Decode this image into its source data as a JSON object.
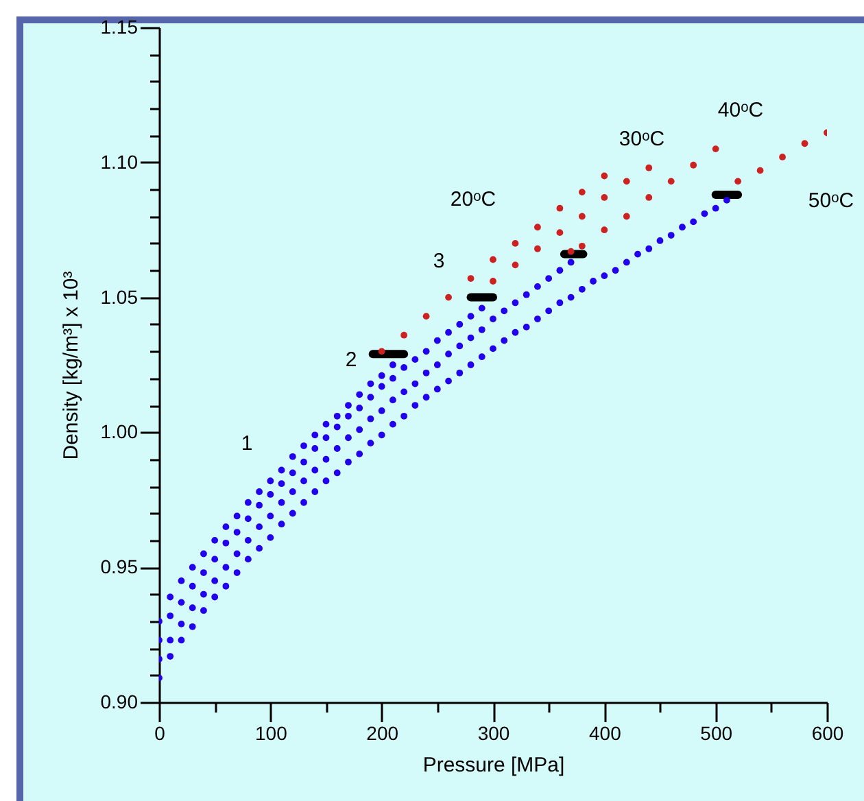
{
  "chart_data": {
    "type": "scatter",
    "xlabel": "Pressure [MPa]",
    "ylabel": "Density [kg/m³] x 10³",
    "xlim": [
      0,
      600
    ],
    "ylim": [
      0.9,
      1.15
    ],
    "xticks": [
      0,
      {
        "value": 50,
        "label": null
      },
      100,
      {
        "value": 150,
        "label": null
      },
      200,
      {
        "value": 250,
        "label": null
      },
      300,
      {
        "value": 350,
        "label": null
      },
      400,
      {
        "value": 450,
        "label": null
      },
      500,
      {
        "value": 550,
        "label": null
      },
      600
    ],
    "yticks": [
      {
        "value": 0.9,
        "label": "0.90"
      },
      {
        "value": 0.91,
        "label": null
      },
      {
        "value": 0.92,
        "label": null
      },
      {
        "value": 0.93,
        "label": null
      },
      {
        "value": 0.94,
        "label": null
      },
      0.95,
      {
        "value": 0.96,
        "label": null
      },
      {
        "value": 0.97,
        "label": null
      },
      {
        "value": 0.98,
        "label": null
      },
      {
        "value": 0.99,
        "label": null
      },
      {
        "value": 1,
        "label": "1.00"
      },
      {
        "value": 1.01,
        "label": null
      },
      {
        "value": 1.02,
        "label": null
      },
      {
        "value": 1.03,
        "label": null
      },
      {
        "value": 1.04,
        "label": null
      },
      1.05,
      {
        "value": 1.06,
        "label": null
      },
      {
        "value": 1.07,
        "label": null
      },
      {
        "value": 1.08,
        "label": null
      },
      {
        "value": 1.09,
        "label": null
      },
      {
        "value": 1.1,
        "label": "1.10"
      },
      {
        "value": 1.11,
        "label": null
      },
      {
        "value": 1.12,
        "label": null
      },
      {
        "value": 1.13,
        "label": null
      },
      {
        "value": 1.14,
        "label": null
      },
      1.15
    ],
    "marker": "circle",
    "series": [
      {
        "color": "#2200ee",
        "x": [
          0,
          10,
          20,
          30,
          40,
          50,
          60,
          70,
          80,
          90,
          100,
          110,
          120,
          130,
          140,
          150,
          160,
          170,
          180,
          190,
          200,
          210
        ],
        "values": [
          0.93,
          0.939,
          0.945,
          0.95,
          0.955,
          0.96,
          0.965,
          0.969,
          0.974,
          0.978,
          0.982,
          0.986,
          0.991,
          0.995,
          0.999,
          1.003,
          1.006,
          1.01,
          1.014,
          1.018,
          1.021,
          1.025
        ]
      },
      {
        "color": "#2200ee",
        "x": [
          0,
          10,
          20,
          30,
          40,
          50,
          60,
          70,
          80,
          90,
          100,
          110,
          120,
          130,
          140,
          150,
          160,
          170,
          180,
          190,
          200,
          210,
          220,
          230,
          240,
          250,
          260,
          270,
          280,
          290
        ],
        "values": [
          0.923,
          0.932,
          0.937,
          0.943,
          0.948,
          0.953,
          0.959,
          0.963,
          0.968,
          0.973,
          0.977,
          0.981,
          0.985,
          0.989,
          0.994,
          0.998,
          1.002,
          1.006,
          1.009,
          1.013,
          1.017,
          1.02,
          1.024,
          1.027,
          1.03,
          1.034,
          1.037,
          1.04,
          1.043,
          1.046
        ]
      },
      {
        "color": "#2200ee",
        "x": [
          0,
          10,
          20,
          30,
          40,
          50,
          60,
          70,
          80,
          90,
          100,
          110,
          120,
          130,
          140,
          150,
          160,
          170,
          180,
          190,
          200,
          210,
          220,
          230,
          240,
          250,
          260,
          270,
          280,
          290,
          300,
          310,
          320,
          330,
          340,
          350,
          360,
          370
        ],
        "values": [
          0.916,
          0.923,
          0.929,
          0.935,
          0.94,
          0.945,
          0.95,
          0.955,
          0.96,
          0.965,
          0.969,
          0.974,
          0.978,
          0.982,
          0.986,
          0.99,
          0.994,
          0.998,
          1.001,
          1.005,
          1.008,
          1.012,
          1.015,
          1.018,
          1.022,
          1.025,
          1.029,
          1.032,
          1.035,
          1.038,
          1.042,
          1.045,
          1.048,
          1.051,
          1.054,
          1.057,
          1.06,
          1.063
        ]
      },
      {
        "color": "#2200ee",
        "x": [
          0,
          10,
          20,
          30,
          40,
          50,
          60,
          70,
          80,
          90,
          100,
          110,
          120,
          130,
          140,
          150,
          160,
          170,
          180,
          190,
          200,
          210,
          220,
          230,
          240,
          250,
          260,
          270,
          280,
          290,
          300,
          310,
          320,
          330,
          340,
          350,
          360,
          370,
          380,
          390,
          400,
          410,
          420,
          430,
          440,
          450,
          460,
          470,
          480,
          490,
          500,
          510
        ],
        "values": [
          0.909,
          0.917,
          0.923,
          0.928,
          0.934,
          0.939,
          0.943,
          0.948,
          0.953,
          0.957,
          0.961,
          0.966,
          0.97,
          0.974,
          0.978,
          0.982,
          0.985,
          0.989,
          0.992,
          0.996,
          0.999,
          1.003,
          1.006,
          1.01,
          1.013,
          1.016,
          1.019,
          1.022,
          1.025,
          1.028,
          1.031,
          1.034,
          1.037,
          1.039,
          1.042,
          1.045,
          1.048,
          1.05,
          1.053,
          1.056,
          1.058,
          1.06,
          1.063,
          1.066,
          1.068,
          1.071,
          1.073,
          1.076,
          1.078,
          1.081,
          1.083,
          1.086
        ]
      },
      {
        "color": "#cc2222",
        "x": [
          200,
          220,
          240,
          260,
          280,
          300,
          320,
          340,
          360,
          380,
          400
        ],
        "values": [
          1.03,
          1.036,
          1.043,
          1.05,
          1.057,
          1.064,
          1.07,
          1.076,
          1.083,
          1.089,
          1.095
        ]
      },
      {
        "color": "#cc2222",
        "x": [
          300,
          320,
          340,
          360,
          380,
          400,
          420,
          440
        ],
        "values": [
          1.056,
          1.062,
          1.068,
          1.074,
          1.08,
          1.087,
          1.093,
          1.098
        ]
      },
      {
        "color": "#cc2222",
        "x": [
          370,
          380,
          400,
          420,
          440,
          460,
          480,
          500
        ],
        "values": [
          1.067,
          1.069,
          1.075,
          1.08,
          1.087,
          1.093,
          1.099,
          1.105
        ]
      },
      {
        "color": "#cc2222",
        "x": [
          520,
          540,
          560,
          580,
          600
        ],
        "values": [
          1.093,
          1.097,
          1.102,
          1.107,
          1.111
        ]
      },
      {
        "type": "line",
        "marker": "none",
        "color": "#000000",
        "x": [
          192,
          220
        ],
        "values": [
          1.029,
          1.029
        ]
      },
      {
        "type": "line",
        "marker": "none",
        "color": "#000000",
        "x": [
          280,
          300
        ],
        "values": [
          1.05,
          1.05
        ]
      },
      {
        "type": "line",
        "marker": "none",
        "color": "#000000",
        "x": [
          364,
          381
        ],
        "values": [
          1.066,
          1.066
        ]
      },
      {
        "type": "line",
        "marker": "none",
        "color": "#000000",
        "x": [
          500,
          520
        ],
        "values": [
          1.088,
          1.088
        ]
      }
    ],
    "annotations": [
      "1",
      "2",
      "3",
      "20ᵒC",
      "30ᵒC",
      "40ᵒC",
      "50ᵒC"
    ]
  }
}
